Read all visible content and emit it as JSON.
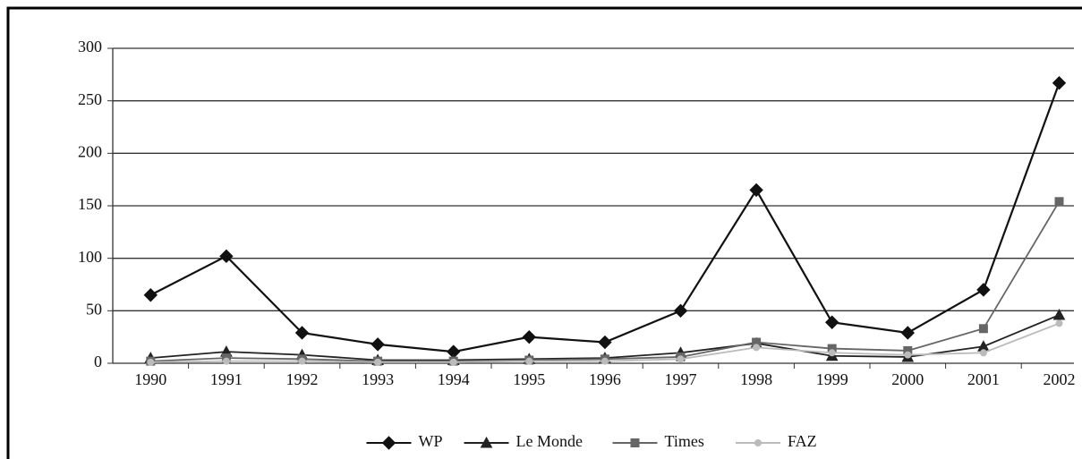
{
  "chart_data": {
    "type": "line",
    "categories": [
      "1990",
      "1991",
      "1992",
      "1993",
      "1994",
      "1995",
      "1996",
      "1997",
      "1998",
      "1999",
      "2000",
      "2001",
      "2002"
    ],
    "series": [
      {
        "name": "WP",
        "color": "#111111",
        "marker": "diamond",
        "values": [
          65,
          102,
          29,
          18,
          11,
          25,
          20,
          50,
          165,
          39,
          29,
          70,
          267
        ]
      },
      {
        "name": "Le Monde",
        "color": "#222222",
        "marker": "triangle",
        "values": [
          5,
          11,
          8,
          3,
          3,
          4,
          5,
          10,
          19,
          7,
          6,
          16,
          46
        ]
      },
      {
        "name": "Times",
        "color": "#666666",
        "marker": "square",
        "values": [
          2,
          5,
          4,
          2,
          2,
          3,
          4,
          6,
          20,
          14,
          12,
          33,
          154
        ]
      },
      {
        "name": "FAZ",
        "color": "#bbbbbb",
        "marker": "circle",
        "values": [
          1,
          2,
          2,
          1,
          1,
          2,
          2,
          4,
          15,
          10,
          8,
          10,
          38
        ]
      }
    ],
    "ylim": [
      0,
      300
    ],
    "yticks": [
      0,
      50,
      100,
      150,
      200,
      250,
      300
    ],
    "grid": true,
    "legend": "bottom"
  }
}
